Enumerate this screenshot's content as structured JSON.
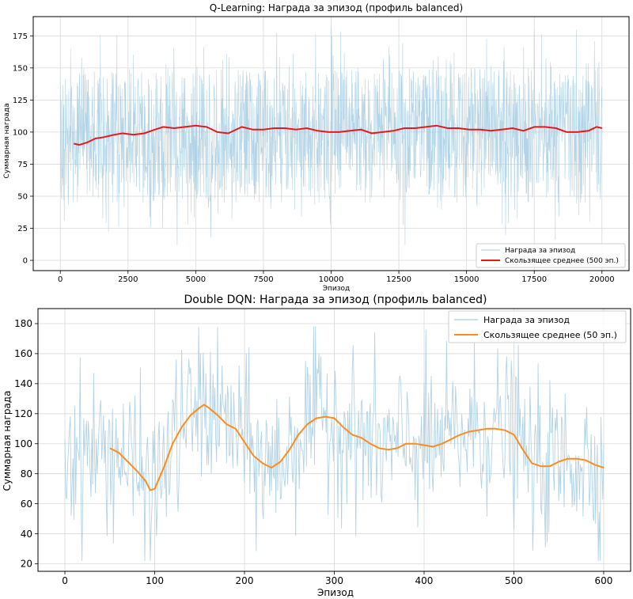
{
  "chart_data": [
    {
      "type": "line",
      "title": "Q-Learning: Награда за эпизод (профиль balanced)",
      "xlabel": "Эпизод",
      "ylabel": "Суммарная награда",
      "xlim": [
        -1000,
        21000
      ],
      "ylim": [
        -8,
        190
      ],
      "xticks": [
        0,
        2500,
        5000,
        7500,
        10000,
        12500,
        15000,
        17500,
        20000
      ],
      "yticks": [
        0,
        25,
        50,
        75,
        100,
        125,
        150,
        175
      ],
      "grid": true,
      "legend_position": "bottom-right",
      "series": [
        {
          "name": "Награда за эпизод",
          "color": "#a6cde2",
          "kind": "raw",
          "episodes": 20000,
          "center": 100,
          "band_low": 45,
          "band_high": 150,
          "min": 12,
          "max": 185
        },
        {
          "name": "Скользящее среднее (500 эп.)",
          "color": "#e31a1c",
          "kind": "smooth",
          "x": [
            500,
            700,
            1000,
            1300,
            1600,
            2000,
            2300,
            2700,
            3100,
            3500,
            3800,
            4200,
            4600,
            5000,
            5400,
            5800,
            6200,
            6700,
            7100,
            7500,
            7900,
            8300,
            8700,
            9100,
            9500,
            9900,
            10300,
            10700,
            11100,
            11500,
            11900,
            12300,
            12700,
            13100,
            13500,
            13900,
            14300,
            14700,
            15100,
            15500,
            15900,
            16300,
            16700,
            17100,
            17500,
            17900,
            18300,
            18700,
            19100,
            19500,
            19800,
            20000
          ],
          "y": [
            91,
            90,
            92,
            95,
            96,
            98,
            99,
            98,
            99,
            102,
            104,
            103,
            104,
            105,
            104,
            100,
            99,
            104,
            102,
            102,
            103,
            103,
            102,
            103,
            101,
            100,
            100,
            101,
            102,
            99,
            100,
            101,
            103,
            103,
            104,
            105,
            103,
            103,
            102,
            102,
            101,
            102,
            103,
            101,
            104,
            104,
            103,
            100,
            100,
            101,
            104,
            103
          ]
        }
      ]
    },
    {
      "type": "line",
      "title": "Double DQN: Награда за эпизод (профиль balanced)",
      "xlabel": "Эпизод",
      "ylabel": "Суммарная награда",
      "xlim": [
        -30,
        630
      ],
      "ylim": [
        15,
        190
      ],
      "xticks": [
        0,
        100,
        200,
        300,
        400,
        500,
        600
      ],
      "yticks": [
        20,
        40,
        60,
        80,
        100,
        120,
        140,
        160,
        180
      ],
      "grid": true,
      "legend_position": "top-right",
      "series": [
        {
          "name": "Награда за эпизод",
          "color": "#a6cde2",
          "kind": "raw",
          "episodes": 600,
          "noise": 26,
          "min": 22,
          "max": 178
        },
        {
          "name": "Скользящее среднее (50 эп.)",
          "color": "#ff8c1a",
          "kind": "smooth",
          "x": [
            50,
            60,
            70,
            80,
            90,
            95,
            100,
            110,
            120,
            130,
            140,
            150,
            155,
            160,
            170,
            180,
            190,
            200,
            210,
            220,
            230,
            240,
            250,
            260,
            270,
            280,
            290,
            300,
            310,
            320,
            330,
            340,
            350,
            360,
            370,
            380,
            390,
            400,
            410,
            420,
            430,
            440,
            450,
            460,
            470,
            480,
            490,
            500,
            510,
            520,
            530,
            540,
            550,
            560,
            570,
            580,
            590,
            600
          ],
          "y": [
            97,
            94,
            88,
            82,
            75,
            69,
            70,
            84,
            100,
            111,
            119,
            124,
            126,
            124,
            119,
            113,
            110,
            101,
            92,
            87,
            84,
            88,
            96,
            106,
            113,
            117,
            118,
            117,
            111,
            106,
            104,
            100,
            97,
            96,
            97,
            100,
            100,
            99,
            98,
            100,
            103,
            106,
            108,
            109,
            110,
            110,
            109,
            106,
            96,
            87,
            85,
            85,
            88,
            90,
            90,
            89,
            86,
            84
          ]
        }
      ]
    }
  ]
}
